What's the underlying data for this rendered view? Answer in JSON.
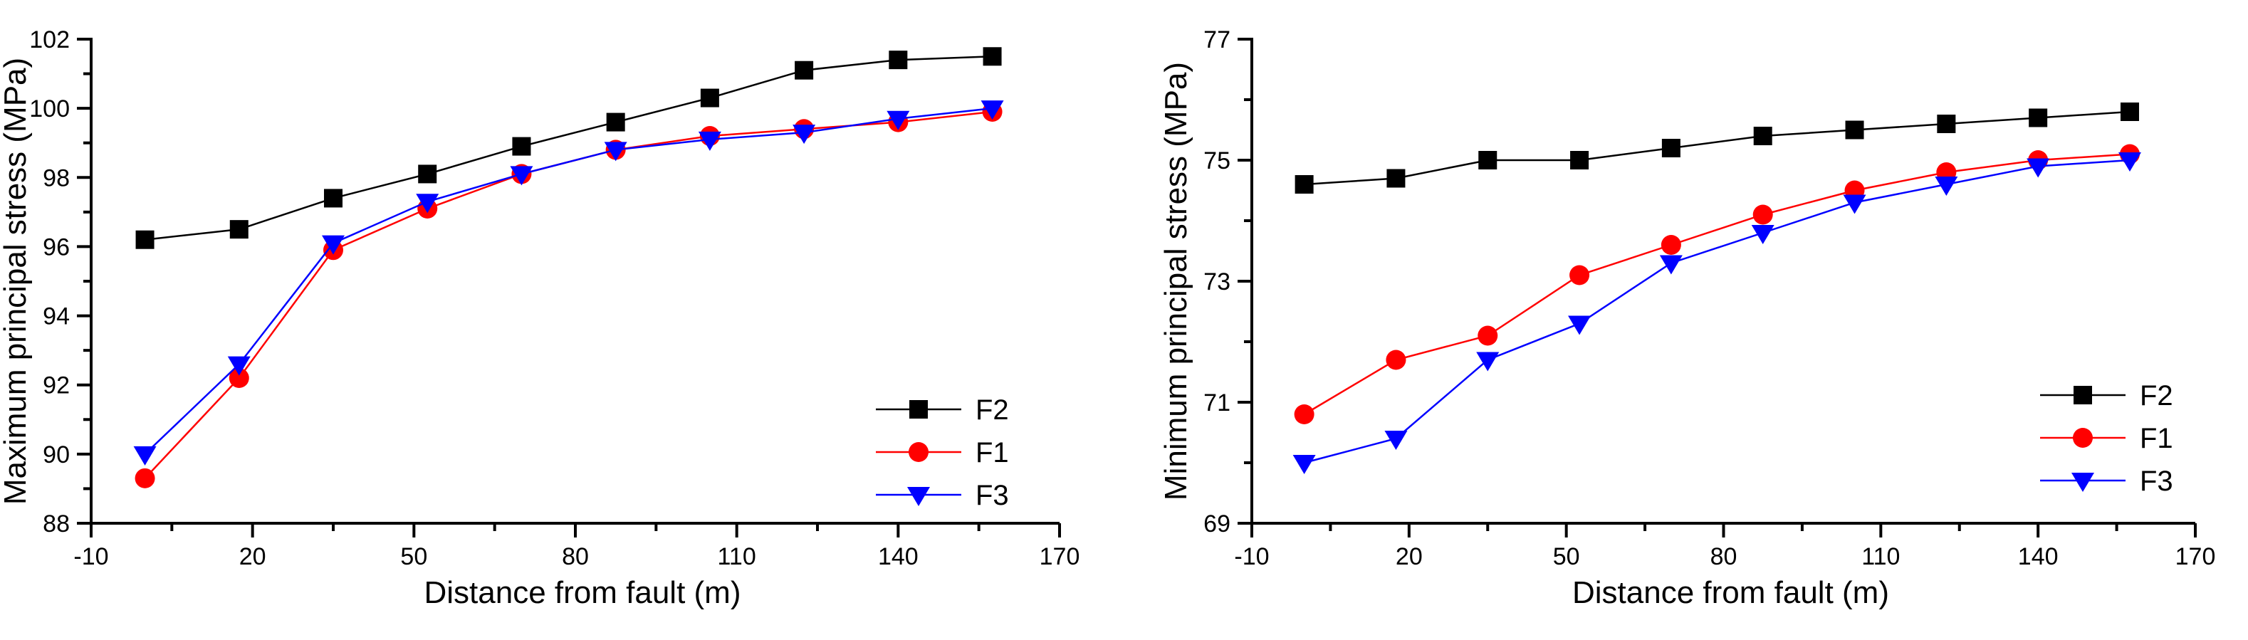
{
  "chart_data": [
    {
      "type": "line",
      "title": "",
      "xlabel": "Distance from fault (m)",
      "ylabel": "Maximum principal stress (MPa)",
      "xlim": [
        -10,
        170
      ],
      "ylim": [
        88,
        102
      ],
      "xticks": [
        -10,
        20,
        50,
        80,
        110,
        140,
        170
      ],
      "yticks": [
        88,
        90,
        92,
        94,
        96,
        98,
        100,
        102
      ],
      "grid": false,
      "legend_position": "lower-right",
      "x": [
        0,
        17.5,
        35,
        52.5,
        70,
        87.5,
        105,
        122.5,
        140,
        157.5
      ],
      "series": [
        {
          "name": "F2",
          "color": "#000000",
          "marker": "square",
          "values": [
            96.2,
            96.5,
            97.4,
            98.1,
            98.9,
            99.6,
            100.3,
            101.1,
            101.4,
            101.5
          ]
        },
        {
          "name": "F1",
          "color": "#ff0000",
          "marker": "circle",
          "values": [
            89.3,
            92.2,
            95.9,
            97.1,
            98.1,
            98.8,
            99.2,
            99.4,
            99.6,
            99.9
          ]
        },
        {
          "name": "F3",
          "color": "#0000ff",
          "marker": "triangle-down",
          "values": [
            90.0,
            92.6,
            96.1,
            97.3,
            98.1,
            98.8,
            99.1,
            99.3,
            99.7,
            100.0
          ]
        }
      ]
    },
    {
      "type": "line",
      "title": "",
      "xlabel": "Distance from fault (m)",
      "ylabel": "Minimum principal stress (MPa)",
      "xlim": [
        -10,
        170
      ],
      "ylim": [
        69,
        77
      ],
      "xticks": [
        -10,
        20,
        50,
        80,
        110,
        140,
        170
      ],
      "yticks": [
        69,
        71,
        73,
        75,
        77
      ],
      "grid": false,
      "legend_position": "lower-right",
      "x": [
        0,
        17.5,
        35,
        52.5,
        70,
        87.5,
        105,
        122.5,
        140,
        157.5
      ],
      "series": [
        {
          "name": "F2",
          "color": "#000000",
          "marker": "square",
          "values": [
            74.6,
            74.7,
            75.0,
            75.0,
            75.2,
            75.4,
            75.5,
            75.6,
            75.7,
            75.8
          ]
        },
        {
          "name": "F1",
          "color": "#ff0000",
          "marker": "circle",
          "values": [
            70.8,
            71.7,
            72.1,
            73.1,
            73.6,
            74.1,
            74.5,
            74.8,
            75.0,
            75.1
          ]
        },
        {
          "name": "F3",
          "color": "#0000ff",
          "marker": "triangle-down",
          "values": [
            70.0,
            70.4,
            71.7,
            72.3,
            73.3,
            73.8,
            74.3,
            74.6,
            74.9,
            75.0
          ]
        }
      ]
    }
  ]
}
